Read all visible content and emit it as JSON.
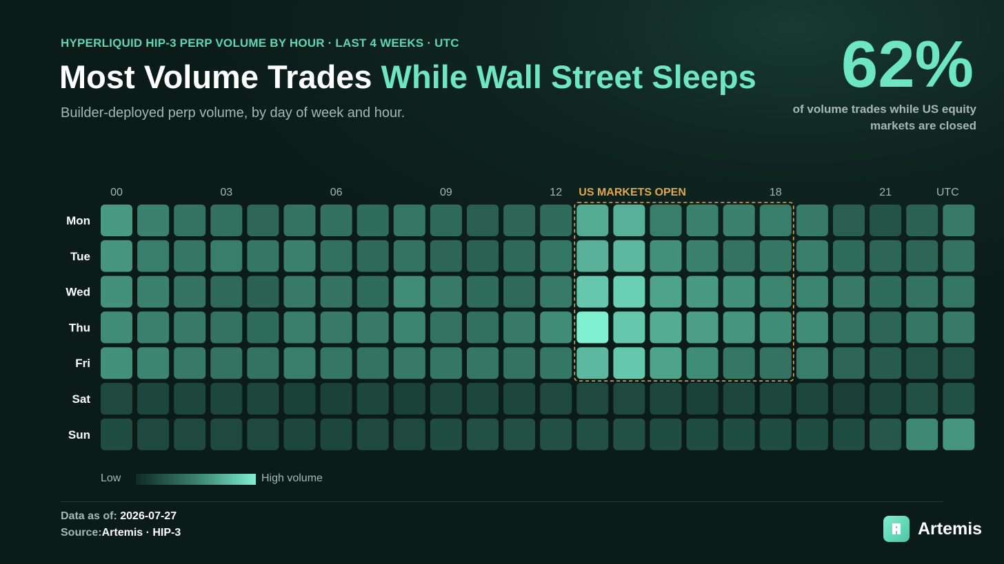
{
  "header": {
    "kicker": "HYPERLIQUID HIP-3 PERP VOLUME BY HOUR · LAST 4 WEEKS · UTC",
    "title_main": "Most Volume Trades ",
    "title_accent": "While Wall Street Sleeps",
    "subtitle": "Builder-deployed perp volume, by day of week and hour."
  },
  "stat": {
    "value": "62%",
    "caption": "of volume trades while US equity markets are closed"
  },
  "legend": {
    "low_label": "Low",
    "high_label": "High volume"
  },
  "footer": {
    "data_as_of_label": "Data as of: ",
    "data_as_of_value": "2026-07-27",
    "source_label": "Source:",
    "source_value": "Artemis · HIP-3"
  },
  "brand": {
    "name": "Artemis"
  },
  "colors": {
    "background": "#0b1b18",
    "accent": "#6ee6c2",
    "kicker": "#5fd6b2",
    "highlight": "#e0a84c",
    "scale_low": "#0f2a24",
    "scale_high": "#7eefcf"
  },
  "chart_data": {
    "type": "heatmap",
    "title": "Most Volume Trades While Wall Street Sleeps",
    "x_unit_label": "UTC",
    "x_tick_labels": [
      {
        "hour": 0,
        "label": "00"
      },
      {
        "hour": 3,
        "label": "03"
      },
      {
        "hour": 6,
        "label": "06"
      },
      {
        "hour": 9,
        "label": "09"
      },
      {
        "hour": 12,
        "label": "12"
      },
      {
        "hour": 18,
        "label": "18"
      },
      {
        "hour": 21,
        "label": "21"
      }
    ],
    "hours": [
      0,
      1,
      2,
      3,
      4,
      5,
      6,
      7,
      8,
      9,
      10,
      11,
      12,
      13,
      14,
      15,
      16,
      17,
      18,
      19,
      20,
      21,
      22,
      23
    ],
    "days": [
      "Mon",
      "Tue",
      "Wed",
      "Thu",
      "Fri",
      "Sat",
      "Sun"
    ],
    "value_scale": "relative volume 0 (Low) to 1 (High volume)",
    "values": [
      [
        0.62,
        0.5,
        0.42,
        0.4,
        0.35,
        0.42,
        0.4,
        0.38,
        0.44,
        0.36,
        0.3,
        0.34,
        0.38,
        0.7,
        0.72,
        0.48,
        0.5,
        0.5,
        0.48,
        0.46,
        0.3,
        0.24,
        0.32,
        0.46
      ],
      [
        0.6,
        0.48,
        0.44,
        0.48,
        0.44,
        0.5,
        0.4,
        0.36,
        0.42,
        0.34,
        0.32,
        0.36,
        0.44,
        0.72,
        0.76,
        0.58,
        0.5,
        0.42,
        0.44,
        0.48,
        0.38,
        0.34,
        0.34,
        0.42
      ],
      [
        0.58,
        0.5,
        0.42,
        0.36,
        0.32,
        0.46,
        0.42,
        0.38,
        0.56,
        0.46,
        0.38,
        0.36,
        0.46,
        0.82,
        0.86,
        0.66,
        0.62,
        0.58,
        0.52,
        0.52,
        0.46,
        0.38,
        0.42,
        0.44
      ],
      [
        0.56,
        0.5,
        0.46,
        0.42,
        0.38,
        0.48,
        0.46,
        0.46,
        0.52,
        0.42,
        0.4,
        0.46,
        0.56,
        1.0,
        0.82,
        0.7,
        0.64,
        0.6,
        0.56,
        0.56,
        0.42,
        0.34,
        0.44,
        0.46
      ],
      [
        0.58,
        0.52,
        0.46,
        0.42,
        0.42,
        0.48,
        0.44,
        0.42,
        0.46,
        0.44,
        0.44,
        0.42,
        0.44,
        0.76,
        0.82,
        0.66,
        0.56,
        0.44,
        0.42,
        0.48,
        0.34,
        0.28,
        0.24,
        0.24
      ],
      [
        0.18,
        0.16,
        0.16,
        0.16,
        0.16,
        0.14,
        0.14,
        0.16,
        0.14,
        0.16,
        0.16,
        0.16,
        0.18,
        0.18,
        0.18,
        0.16,
        0.14,
        0.16,
        0.16,
        0.16,
        0.12,
        0.16,
        0.22,
        0.22
      ],
      [
        0.2,
        0.18,
        0.18,
        0.18,
        0.18,
        0.16,
        0.16,
        0.18,
        0.18,
        0.2,
        0.22,
        0.22,
        0.22,
        0.22,
        0.22,
        0.2,
        0.2,
        0.2,
        0.2,
        0.2,
        0.2,
        0.26,
        0.54,
        0.6
      ]
    ],
    "highlight": {
      "label": "US MARKETS OPEN",
      "hour_start": 13,
      "hour_end": 19,
      "day_start": "Mon",
      "day_end": "Fri"
    },
    "legend": {
      "low": "Low",
      "high": "High volume"
    }
  }
}
